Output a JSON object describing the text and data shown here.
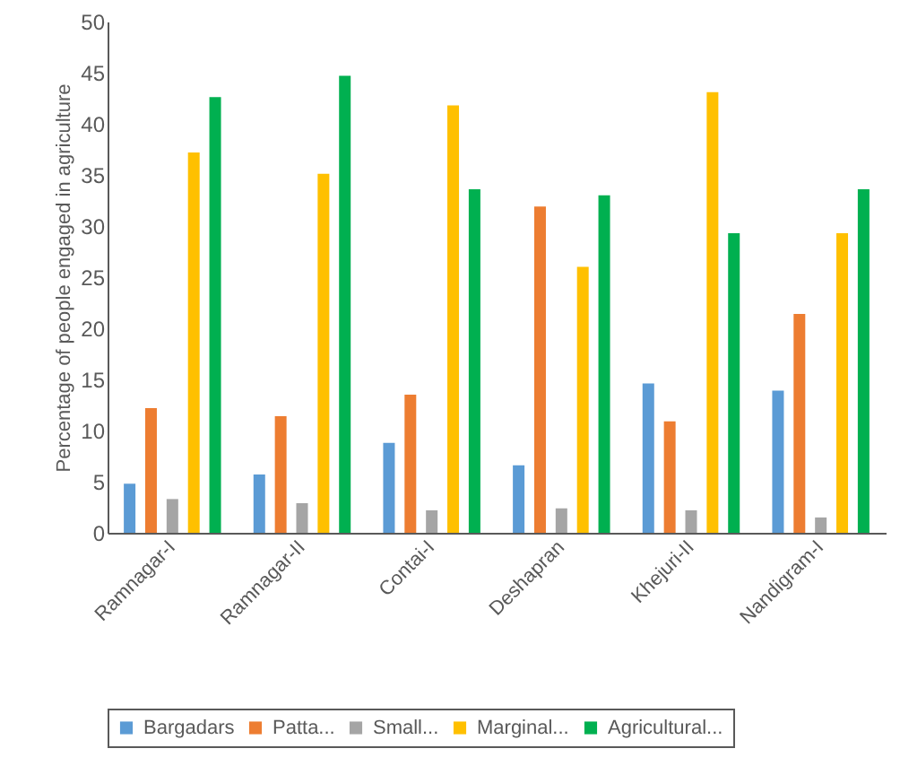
{
  "chart_data": {
    "type": "bar",
    "ylabel": "Percentage of people engaged in agriculture",
    "categories": [
      "Ramnagar-I",
      "Ramnagar-II",
      "Contai-I",
      "Deshapran",
      "Khejuri-II",
      "Nandigram-I"
    ],
    "series": [
      {
        "name": "Bargadars",
        "color": "#5b9bd5",
        "values": [
          4.8,
          5.7,
          8.8,
          6.6,
          14.6,
          13.9
        ]
      },
      {
        "name": "Patta...",
        "color": "#ed7d31",
        "values": [
          12.2,
          11.4,
          13.5,
          31.9,
          10.9,
          21.4
        ]
      },
      {
        "name": "Small...",
        "color": "#a5a5a5",
        "values": [
          3.3,
          2.9,
          2.2,
          2.4,
          2.2,
          1.5
        ]
      },
      {
        "name": "Marginal...",
        "color": "#ffc000",
        "values": [
          37.2,
          35.1,
          41.8,
          26.0,
          43.1,
          29.3
        ]
      },
      {
        "name": "Agricultural...",
        "color": "#00b050",
        "values": [
          42.6,
          44.7,
          33.6,
          33.0,
          29.3,
          33.6
        ]
      }
    ],
    "ylim": [
      0,
      50
    ],
    "yticks": [
      0,
      5,
      10,
      15,
      20,
      25,
      30,
      35,
      40,
      45,
      50
    ],
    "grid": false,
    "legend": "bottom"
  }
}
